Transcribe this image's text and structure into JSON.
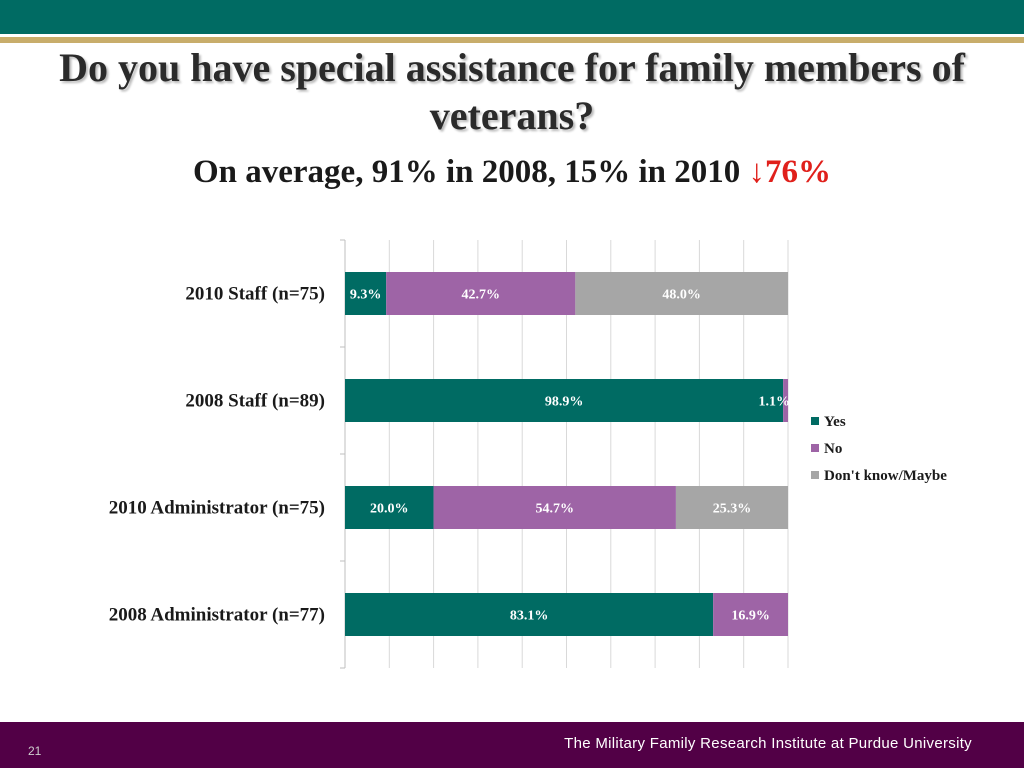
{
  "slide": {
    "title": "Do you have special assistance for family members of veterans?",
    "subtitle_prefix": "On average, 91% in 2008, 15% in 2010 ",
    "subtitle_change": "↓76%",
    "page_number": "21",
    "footer_brand": "The Military Family Research Institute at Purdue University"
  },
  "colors": {
    "top_band": "#006b63",
    "gold_line": "#c8ad6b",
    "footer": "#520046",
    "change_text": "#e0201b"
  },
  "chart_data": {
    "type": "bar",
    "orientation": "horizontal",
    "stacked": "100%",
    "title": "",
    "xlabel": "",
    "ylabel": "",
    "xlim": [
      0,
      100
    ],
    "grid": true,
    "legend_position": "right",
    "categories": [
      "2010 Staff (n=75)",
      "2008 Staff (n=89)",
      "2010 Administrator (n=75)",
      "2008 Administrator (n=77)"
    ],
    "series": [
      {
        "name": "Yes",
        "color": "#006b63",
        "values": [
          9.3,
          98.9,
          20.0,
          83.1
        ],
        "labels": [
          "9.3%",
          "98.9%",
          "20.0%",
          "83.1%"
        ]
      },
      {
        "name": "No",
        "color": "#9e64a6",
        "values": [
          42.7,
          1.1,
          54.7,
          16.9
        ],
        "labels": [
          "42.7%",
          "1.1%",
          "54.7%",
          "16.9%"
        ]
      },
      {
        "name": "Don't know/Maybe",
        "color": "#a6a6a6",
        "values": [
          48.0,
          0,
          25.3,
          0
        ],
        "labels": [
          "48.0%",
          "",
          "25.3%",
          ""
        ]
      }
    ]
  }
}
